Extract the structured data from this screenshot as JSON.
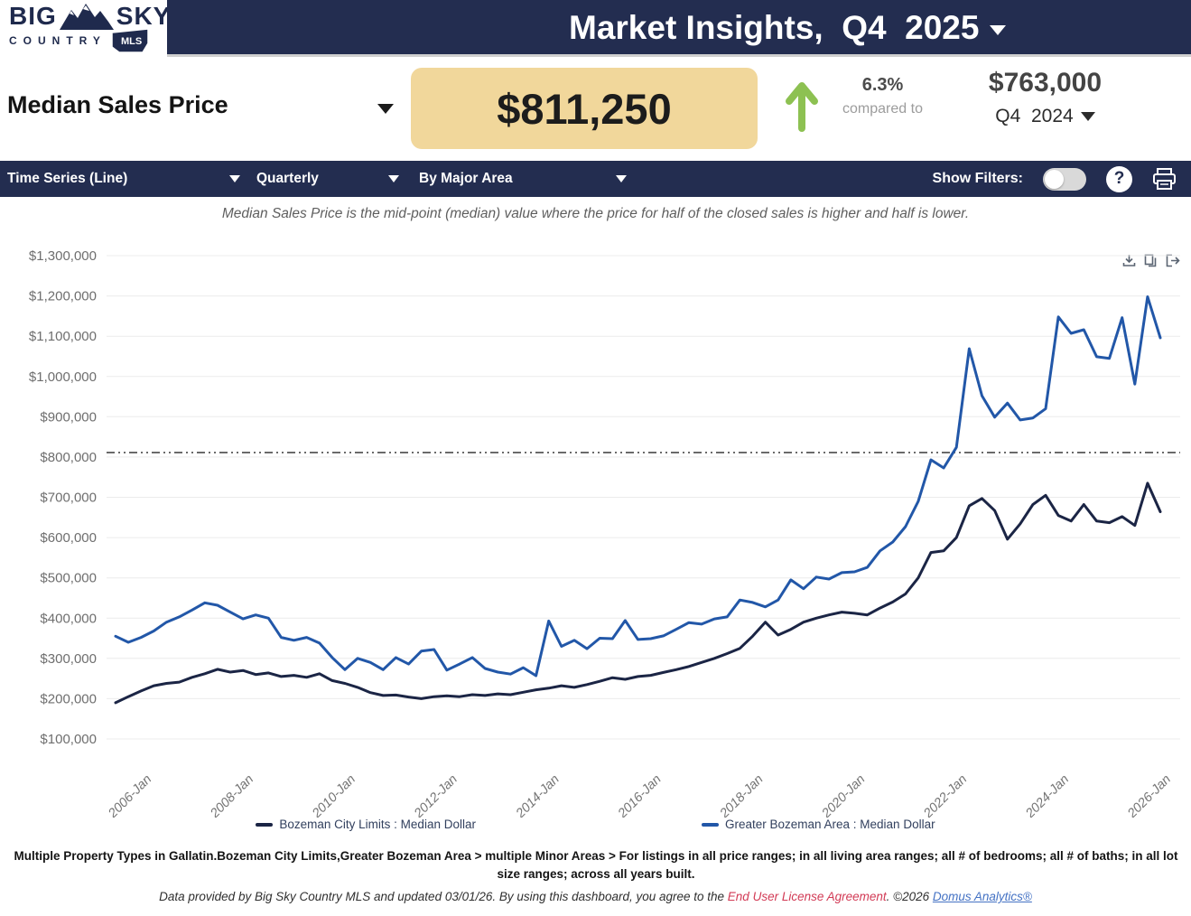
{
  "header": {
    "logo_word1": "BIG",
    "logo_word2": "SKY",
    "logo_country": "COUNTRY",
    "logo_badge": "MLS",
    "title": "Market Insights,  Q4  2025"
  },
  "stats": {
    "metric_label": "Median Sales Price",
    "current_value": "$811,250",
    "change_pct": "6.3%",
    "change_sub": "compared to",
    "compare_value": "$763,000",
    "compare_period": "Q4  2024",
    "trend_direction": "up",
    "trend_color": "#8dc152",
    "value_box_color": "#f1d79b"
  },
  "filterbar": {
    "chart_type": "Time Series (Line)",
    "frequency": "Quarterly",
    "grouping": "By Major Area",
    "show_filters_label": "Show Filters:",
    "show_filters_state": "off",
    "help_label": "?"
  },
  "subtitle": "Median Sales Price is the mid-point (median) value where the price for half of the closed sales is higher and half is lower.",
  "chart_data": {
    "type": "line",
    "frequency": "quarterly",
    "x_start": "2005-Q3",
    "x_end": "2026-Q1",
    "units": "USD thousands",
    "grid": true,
    "ylim": [
      100000,
      1300000
    ],
    "y_tick_labels": [
      "$1,300,000",
      "$1,200,000",
      "$1,100,000",
      "$1,000,000",
      "$900,000",
      "$800,000",
      "$700,000",
      "$600,000",
      "$500,000",
      "$400,000",
      "$300,000",
      "$200,000",
      "$100,000"
    ],
    "x_tick_labels": [
      "2006-Jan",
      "2008-Jan",
      "2010-Jan",
      "2012-Jan",
      "2014-Jan",
      "2016-Jan",
      "2018-Jan",
      "2020-Jan",
      "2022-Jan",
      "2024-Jan",
      "2026-Jan"
    ],
    "x_tick_indices": [
      2,
      10,
      18,
      26,
      34,
      42,
      50,
      58,
      66,
      74,
      82
    ],
    "reference_line": {
      "value_usd": 811250,
      "style": "dash-dot",
      "color": "#4a4a4a"
    },
    "series": [
      {
        "name": "Bozeman City Limits : Median Dollar",
        "color": "#1b2545",
        "values_usd_thousands": [
          190,
          205,
          219,
          232,
          238,
          241,
          253,
          262,
          273,
          266,
          270,
          260,
          264,
          255,
          258,
          253,
          262,
          245,
          238,
          228,
          215,
          208,
          209,
          204,
          200,
          205,
          207,
          205,
          210,
          208,
          212,
          210,
          216,
          222,
          226,
          232,
          228,
          235,
          243,
          252,
          248,
          255,
          258,
          265,
          272,
          280,
          290,
          300,
          312,
          325,
          355,
          390,
          358,
          372,
          390,
          400,
          408,
          415,
          412,
          408,
          425,
          440,
          460,
          500,
          563,
          567,
          600,
          679,
          697,
          667,
          596,
          634,
          682,
          705,
          655,
          641,
          682,
          641,
          637,
          652,
          630,
          735,
          664
        ]
      },
      {
        "name": "Greater Bozeman Area : Median Dollar",
        "color": "#2257a8",
        "values_usd_thousands": [
          355,
          340,
          352,
          368,
          390,
          403,
          420,
          438,
          432,
          415,
          398,
          408,
          400,
          352,
          345,
          352,
          338,
          302,
          272,
          300,
          290,
          272,
          302,
          286,
          318,
          322,
          271,
          286,
          302,
          275,
          266,
          261,
          277,
          257,
          393,
          330,
          345,
          324,
          350,
          349,
          394,
          347,
          349,
          356,
          372,
          389,
          385,
          398,
          403,
          445,
          439,
          428,
          445,
          495,
          473,
          502,
          497,
          513,
          515,
          526,
          567,
          589,
          627,
          690,
          793,
          773,
          824,
          1069,
          952,
          899,
          934,
          892,
          897,
          920,
          1148,
          1107,
          1116,
          1049,
          1045,
          1146,
          981,
          1198,
          1096
        ]
      }
    ],
    "toolbar_icons": [
      "download-icon",
      "copy-icon",
      "export-icon"
    ]
  },
  "footer": {
    "disclaimer": "Multiple Property Types in Gallatin.Bozeman City Limits,Greater Bozeman Area > multiple Minor Areas > For listings in all price ranges; in all living area ranges; all # of bedrooms; all # of baths; in all lot size ranges; across all years built.",
    "datanote_prefix": "Data provided by Big Sky Country MLS and updated 03/01/26.  By using this dashboard, you agree to the ",
    "eula_link": "End User License Agreement",
    "datanote_mid": ".  ©2026 ",
    "domus_link": "Domus Analytics®"
  }
}
